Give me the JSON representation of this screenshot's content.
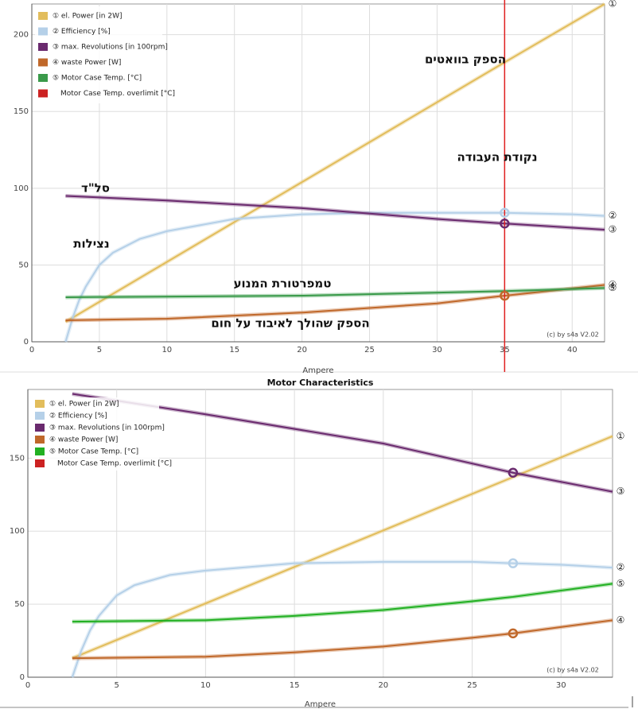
{
  "chart_data": [
    {
      "type": "line",
      "x_label": "Ampere",
      "credit": "(c) by s4a V2.02",
      "xlim": [
        0,
        42.4
      ],
      "ylim": [
        0,
        220
      ],
      "xticks": [
        0,
        5,
        10,
        15,
        20,
        25,
        30,
        35,
        40
      ],
      "yticks": [
        0,
        50,
        100,
        150,
        200
      ],
      "grid": true,
      "marker_x": 35,
      "operating_line_color": "#e02020",
      "series": [
        {
          "name": "① el. Power [in 2W]",
          "end_label": "①",
          "color": "#e2bd5c",
          "marker": false,
          "x": [
            2.5,
            35,
            42.4
          ],
          "values": [
            13,
            182,
            220
          ]
        },
        {
          "name": "② Efficiency [%]",
          "end_label": "②",
          "color": "#b5d0e8",
          "marker": true,
          "x": [
            2.5,
            3,
            3.5,
            4,
            5,
            6,
            8,
            10,
            15,
            20,
            25,
            30,
            35,
            40,
            42.4
          ],
          "values": [
            0,
            15,
            27,
            36,
            50,
            58,
            67,
            72,
            80,
            83,
            84,
            84,
            84,
            83,
            82
          ]
        },
        {
          "name": "③ max. Revolutions [in 100rpm]",
          "end_label": "③",
          "color": "#6a2a6e",
          "marker": true,
          "x": [
            2.5,
            10,
            20,
            30,
            35,
            42.4
          ],
          "values": [
            95,
            92,
            87,
            80,
            77,
            73
          ]
        },
        {
          "name": "④ waste Power [W]",
          "end_label": "④",
          "color": "#c0682a",
          "marker": true,
          "x": [
            2.5,
            10,
            20,
            25,
            30,
            35,
            42.4
          ],
          "values": [
            14,
            15,
            19,
            22,
            25,
            30,
            37
          ]
        },
        {
          "name": "⑤ Motor Case Temp. [°C]",
          "end_label": "⑤",
          "color": "#3a9a4a",
          "marker": false,
          "x": [
            2.5,
            20,
            35,
            42.4
          ],
          "values": [
            29,
            30,
            33,
            35
          ]
        }
      ],
      "legend_extra": [
        {
          "name": "Motor Case Temp. overlimit [°C]",
          "color": "#cc2222"
        }
      ],
      "annotations": [
        "הספק בוואטים",
        "נקודת העבודה",
        "סל\"ד",
        "נצילות",
        "טמפרטורת המנוע",
        "הספק שהולך לאיבוד על חום"
      ]
    },
    {
      "type": "line",
      "title": "Motor Characteristics",
      "x_label": "Ampere",
      "credit": "(c) by s4a   V2.02",
      "xlim": [
        0,
        32.9
      ],
      "ylim": [
        0,
        197
      ],
      "xticks": [
        0,
        5,
        10,
        15,
        20,
        25,
        30
      ],
      "yticks": [
        0,
        50,
        100,
        150
      ],
      "grid": true,
      "marker_x": 27.3,
      "series": [
        {
          "name": "① el. Power [in 2W]",
          "end_label": "①",
          "color": "#e2bd5c",
          "marker": false,
          "x": [
            2.5,
            27.3,
            32.9
          ],
          "values": [
            13,
            137,
            165
          ]
        },
        {
          "name": "② Efficiency [%]",
          "end_label": "②",
          "color": "#b5d0e8",
          "marker": true,
          "x": [
            2.5,
            3,
            3.5,
            4,
            5,
            6,
            8,
            10,
            15,
            20,
            25,
            27.3,
            30,
            32.9
          ],
          "values": [
            0,
            18,
            32,
            42,
            56,
            63,
            70,
            73,
            78,
            79,
            79,
            78,
            77,
            75
          ]
        },
        {
          "name": "③ max. Revolutions [in 100rpm]",
          "end_label": "③",
          "color": "#6a2a6e",
          "marker": true,
          "x": [
            2.5,
            10,
            20,
            27.3,
            32.9
          ],
          "values": [
            194,
            180,
            160,
            140,
            127
          ]
        },
        {
          "name": "④ waste Power [W]",
          "end_label": "④",
          "color": "#c0682a",
          "marker": true,
          "x": [
            2.5,
            10,
            15,
            20,
            25,
            27.3,
            32.9
          ],
          "values": [
            13,
            14,
            17,
            21,
            27,
            30,
            39
          ]
        },
        {
          "name": "⑤ Motor Case Temp. [°C]",
          "end_label": "⑤",
          "color": "#22b022",
          "marker": false,
          "x": [
            2.5,
            10,
            15,
            20,
            25,
            27.3,
            32.9
          ],
          "values": [
            38,
            39,
            42,
            46,
            52,
            55,
            64
          ]
        }
      ],
      "legend_extra": [
        {
          "name": "Motor Case Temp. overlimit [°C]",
          "color": "#cc2222"
        }
      ]
    }
  ]
}
